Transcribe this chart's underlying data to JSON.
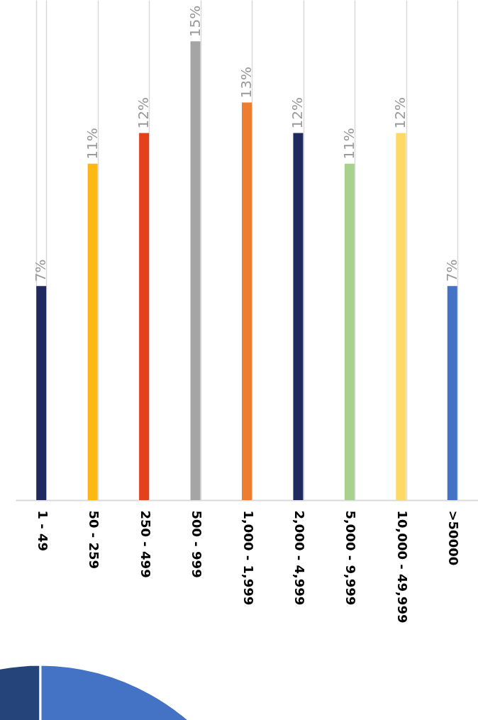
{
  "chart_data": {
    "type": "bar",
    "categories": [
      "1 - 49",
      "50 - 259",
      "250 - 499",
      "500 - 999",
      "1,000 - 1,999",
      "2,000 - 4,999",
      "5,000 - 9,999",
      "10,000 - 49,999",
      ">50000"
    ],
    "values": [
      7,
      11,
      12,
      15,
      13,
      12,
      11,
      12,
      7
    ],
    "colors": [
      "#1f2a5e",
      "#fdb913",
      "#e4401a",
      "#a5a5a5",
      "#ed7d31",
      "#1f2a5e",
      "#a9d18e",
      "#ffd966",
      "#4472c4"
    ],
    "value_labels": [
      "7%",
      "11%",
      "12%",
      "15%",
      "13%",
      "12%",
      "11%",
      "12%",
      "7%"
    ],
    "grid": "x"
  }
}
